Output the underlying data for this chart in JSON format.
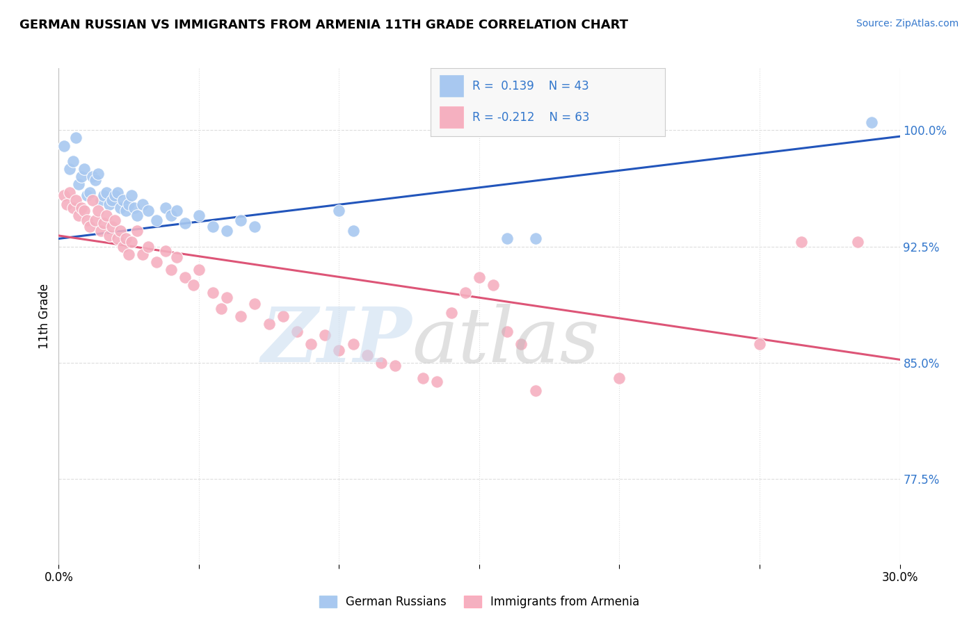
{
  "title": "GERMAN RUSSIAN VS IMMIGRANTS FROM ARMENIA 11TH GRADE CORRELATION CHART",
  "source": "Source: ZipAtlas.com",
  "ylabel": "11th Grade",
  "yticks": [
    "77.5%",
    "85.0%",
    "92.5%",
    "100.0%"
  ],
  "ytick_vals": [
    0.775,
    0.85,
    0.925,
    1.0
  ],
  "xlim": [
    0.0,
    0.3
  ],
  "ylim": [
    0.72,
    1.04
  ],
  "blue_color": "#A8C8F0",
  "pink_color": "#F5B0C0",
  "blue_line_color": "#2255BB",
  "pink_line_color": "#DD5577",
  "blue_scatter": [
    [
      0.002,
      0.99
    ],
    [
      0.004,
      0.975
    ],
    [
      0.005,
      0.98
    ],
    [
      0.006,
      0.995
    ],
    [
      0.007,
      0.965
    ],
    [
      0.008,
      0.97
    ],
    [
      0.009,
      0.975
    ],
    [
      0.01,
      0.958
    ],
    [
      0.011,
      0.96
    ],
    [
      0.012,
      0.97
    ],
    [
      0.013,
      0.968
    ],
    [
      0.014,
      0.972
    ],
    [
      0.015,
      0.955
    ],
    [
      0.016,
      0.958
    ],
    [
      0.017,
      0.96
    ],
    [
      0.018,
      0.952
    ],
    [
      0.019,
      0.955
    ],
    [
      0.02,
      0.958
    ],
    [
      0.021,
      0.96
    ],
    [
      0.022,
      0.95
    ],
    [
      0.023,
      0.955
    ],
    [
      0.024,
      0.948
    ],
    [
      0.025,
      0.952
    ],
    [
      0.026,
      0.958
    ],
    [
      0.027,
      0.95
    ],
    [
      0.028,
      0.945
    ],
    [
      0.03,
      0.952
    ],
    [
      0.032,
      0.948
    ],
    [
      0.035,
      0.942
    ],
    [
      0.038,
      0.95
    ],
    [
      0.04,
      0.945
    ],
    [
      0.042,
      0.948
    ],
    [
      0.045,
      0.94
    ],
    [
      0.05,
      0.945
    ],
    [
      0.055,
      0.938
    ],
    [
      0.06,
      0.935
    ],
    [
      0.065,
      0.942
    ],
    [
      0.07,
      0.938
    ],
    [
      0.1,
      0.948
    ],
    [
      0.105,
      0.935
    ],
    [
      0.16,
      0.93
    ],
    [
      0.17,
      0.93
    ],
    [
      0.29,
      1.005
    ]
  ],
  "pink_scatter": [
    [
      0.002,
      0.958
    ],
    [
      0.003,
      0.952
    ],
    [
      0.004,
      0.96
    ],
    [
      0.005,
      0.95
    ],
    [
      0.006,
      0.955
    ],
    [
      0.007,
      0.945
    ],
    [
      0.008,
      0.95
    ],
    [
      0.009,
      0.948
    ],
    [
      0.01,
      0.942
    ],
    [
      0.011,
      0.938
    ],
    [
      0.012,
      0.955
    ],
    [
      0.013,
      0.942
    ],
    [
      0.014,
      0.948
    ],
    [
      0.015,
      0.935
    ],
    [
      0.016,
      0.94
    ],
    [
      0.017,
      0.945
    ],
    [
      0.018,
      0.932
    ],
    [
      0.019,
      0.938
    ],
    [
      0.02,
      0.942
    ],
    [
      0.021,
      0.93
    ],
    [
      0.022,
      0.935
    ],
    [
      0.023,
      0.925
    ],
    [
      0.024,
      0.93
    ],
    [
      0.025,
      0.92
    ],
    [
      0.026,
      0.928
    ],
    [
      0.028,
      0.935
    ],
    [
      0.03,
      0.92
    ],
    [
      0.032,
      0.925
    ],
    [
      0.035,
      0.915
    ],
    [
      0.038,
      0.922
    ],
    [
      0.04,
      0.91
    ],
    [
      0.042,
      0.918
    ],
    [
      0.045,
      0.905
    ],
    [
      0.048,
      0.9
    ],
    [
      0.05,
      0.91
    ],
    [
      0.055,
      0.895
    ],
    [
      0.058,
      0.885
    ],
    [
      0.06,
      0.892
    ],
    [
      0.065,
      0.88
    ],
    [
      0.07,
      0.888
    ],
    [
      0.075,
      0.875
    ],
    [
      0.08,
      0.88
    ],
    [
      0.085,
      0.87
    ],
    [
      0.09,
      0.862
    ],
    [
      0.095,
      0.868
    ],
    [
      0.1,
      0.858
    ],
    [
      0.105,
      0.862
    ],
    [
      0.11,
      0.855
    ],
    [
      0.115,
      0.85
    ],
    [
      0.12,
      0.848
    ],
    [
      0.13,
      0.84
    ],
    [
      0.135,
      0.838
    ],
    [
      0.14,
      0.882
    ],
    [
      0.145,
      0.895
    ],
    [
      0.15,
      0.905
    ],
    [
      0.155,
      0.9
    ],
    [
      0.16,
      0.87
    ],
    [
      0.165,
      0.862
    ],
    [
      0.17,
      0.832
    ],
    [
      0.2,
      0.84
    ],
    [
      0.25,
      0.862
    ],
    [
      0.265,
      0.928
    ],
    [
      0.285,
      0.928
    ]
  ]
}
